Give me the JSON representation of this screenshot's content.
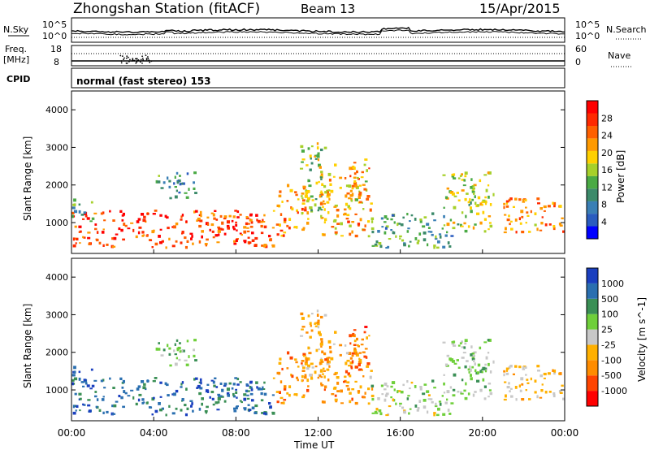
{
  "header": {
    "station": "Zhongshan Station (fitACF)",
    "beam": "Beam 13",
    "date": "15/Apr/2015"
  },
  "sky_panel": {
    "left_label": "N.Sky",
    "right_label": "N.Search",
    "left_ticks": [
      "10^5",
      "10^0"
    ],
    "right_ticks": [
      "10^5",
      "10^0"
    ]
  },
  "freq_panel": {
    "left_label_1": "Freq.",
    "left_label_2": "[MHz]",
    "right_label": "Nave",
    "left_ticks": [
      "18",
      "8"
    ],
    "right_ticks": [
      "60",
      "0"
    ]
  },
  "cpid": {
    "label": "CPID",
    "value": "normal (fast stereo) 153"
  },
  "colors": {
    "power": [
      "#0000ff",
      "#2a5cbf",
      "#3a7fb5",
      "#3c8a6a",
      "#4aaa44",
      "#a6d02a",
      "#ffd000",
      "#ff9a00",
      "#ff6000",
      "#ff2a00",
      "#ff0000"
    ],
    "velocity": [
      "#ff0000",
      "#ff4400",
      "#ff8c00",
      "#ffb000",
      "#c8c8c8",
      "#6fcf3a",
      "#3a8f55",
      "#2a6fb0",
      "#1a3fbf"
    ]
  },
  "chart_data": {
    "type": "heatmap",
    "x_ticks": [
      "00:00",
      "04:00",
      "08:00",
      "12:00",
      "16:00",
      "20:00",
      "00:00"
    ],
    "x_label": "Time UT",
    "y_label": "Slant Range [km]",
    "y_ticks": [
      1000,
      2000,
      3000,
      4000
    ],
    "ylim": [
      180,
      4500
    ],
    "xlim_hours": [
      0,
      24
    ],
    "panels": [
      {
        "quantity": "Power",
        "colorbar_label": "Power [dB]",
        "colorbar_ticks": [
          "4",
          "8",
          "12",
          "16",
          "20",
          "24",
          "28"
        ],
        "range": [
          0,
          30
        ]
      },
      {
        "quantity": "Velocity",
        "colorbar_label": "Velocity [m s^-1]",
        "colorbar_ticks": [
          "1000",
          "500",
          "100",
          "25",
          "-25",
          "-100",
          "-500",
          "-1000"
        ],
        "range": [
          -1000,
          1000
        ]
      }
    ],
    "echo_regions": [
      {
        "t0": 0.0,
        "t1": 9.8,
        "r0": 300,
        "r1": 1300,
        "power": 26,
        "velocity": 700
      },
      {
        "t0": 0.0,
        "t1": 1.0,
        "r0": 1000,
        "r1": 1600,
        "power": 10,
        "velocity": 900
      },
      {
        "t0": 9.8,
        "t1": 11.5,
        "r0": 600,
        "r1": 2000,
        "power": 22,
        "velocity": -450
      },
      {
        "t0": 11.0,
        "t1": 12.3,
        "r0": 1200,
        "r1": 3100,
        "power": 14,
        "velocity": -300
      },
      {
        "t0": 12.0,
        "t1": 14.6,
        "r0": 600,
        "r1": 2500,
        "power": 20,
        "velocity": -400
      },
      {
        "t0": 13.5,
        "t1": 14.3,
        "r0": 1500,
        "r1": 2700,
        "power": 18,
        "velocity": -600
      },
      {
        "t0": 14.5,
        "t1": 18.5,
        "r0": 300,
        "r1": 1200,
        "power": 10,
        "velocity": 120
      },
      {
        "t0": 18.0,
        "t1": 20.5,
        "r0": 700,
        "r1": 2300,
        "power": 16,
        "velocity": 200
      },
      {
        "t0": 21.0,
        "t1": 24.0,
        "r0": 700,
        "r1": 1600,
        "power": 22,
        "velocity": -200
      },
      {
        "t0": 4.0,
        "t1": 6.0,
        "r0": 1600,
        "r1": 2300,
        "power": 8,
        "velocity": 300
      }
    ]
  }
}
